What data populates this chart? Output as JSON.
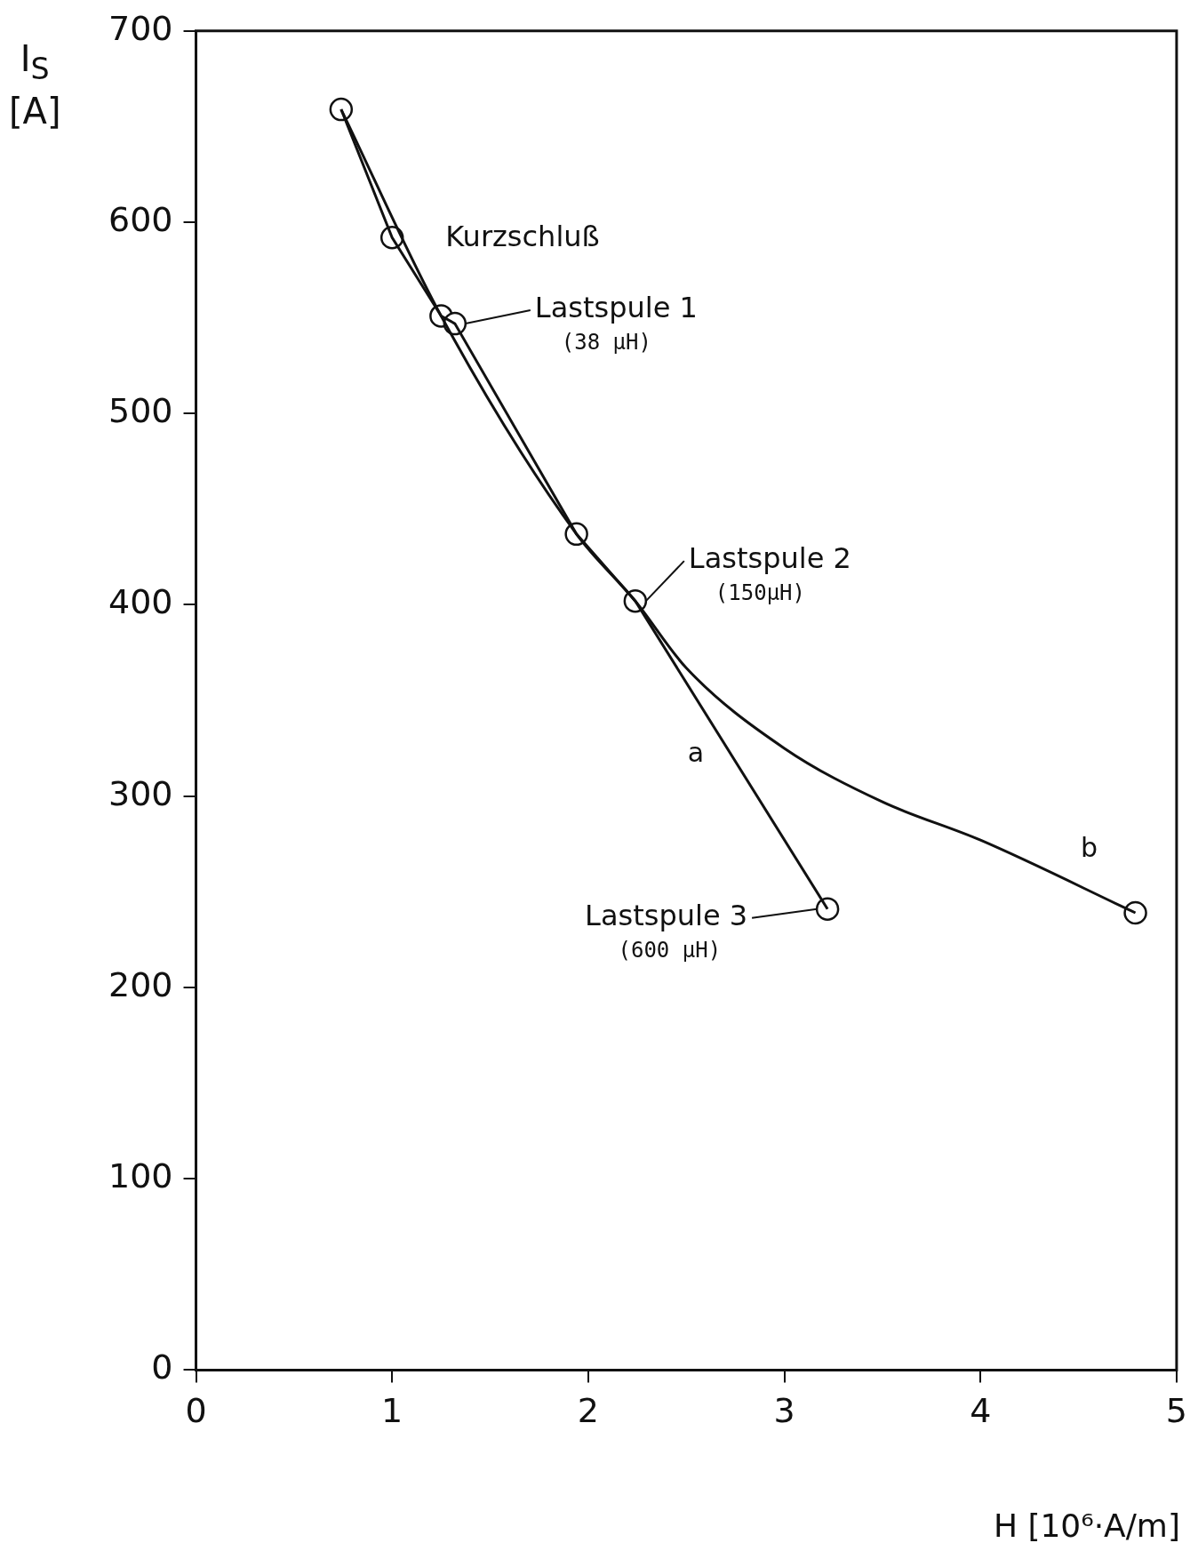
{
  "chart_data": {
    "type": "line",
    "xlabel": "H [10⁶·A/m]",
    "ylabel": "I$_{S}$ [A]",
    "xlim": [
      0,
      5
    ],
    "xticks": [
      0,
      1,
      2,
      3,
      4,
      5
    ],
    "ylim": [
      0,
      700
    ],
    "yticks": [
      0,
      100,
      200,
      300,
      400,
      500,
      600,
      700
    ],
    "grid": false,
    "legend": false,
    "series": [
      {
        "name": "a",
        "marker": "none",
        "color": "#111111",
        "x": [
          0.74,
          1.0,
          1.25,
          1.32,
          1.94,
          2.24,
          3.22
        ],
        "values": [
          659,
          592,
          551,
          547,
          437,
          402,
          241
        ]
      },
      {
        "name": "b",
        "marker": "none",
        "color": "#111111",
        "x": [
          0.74,
          1.25,
          1.94,
          2.24,
          2.5,
          3.0,
          3.5,
          4.0,
          4.79
        ],
        "values": [
          659,
          551,
          437,
          402,
          367,
          325,
          297,
          277,
          239
        ]
      },
      {
        "type": "scatter",
        "marker": "circle",
        "color": "#111111",
        "x": [
          1.0,
          1.32,
          1.94,
          3.22
        ],
        "values": [
          592,
          547,
          437,
          241
        ]
      },
      {
        "type": "scatter",
        "marker": "circle",
        "color": "#111111",
        "x": [
          0.74,
          1.25,
          2.24,
          4.79
        ],
        "values": [
          659,
          551,
          402,
          239
        ]
      }
    ],
    "annotations": [
      "Kurzschluß",
      {
        "text": "Lastspule 1\n(38 µH)",
        "x": 1.32,
        "y": 547
      },
      {
        "text": "Lastspule 2\n(150µH)",
        "x": 2.24,
        "y": 402
      },
      {
        "text": "Lastspule 3\n(600 µH)",
        "x": 3.22,
        "y": 241
      }
    ]
  }
}
